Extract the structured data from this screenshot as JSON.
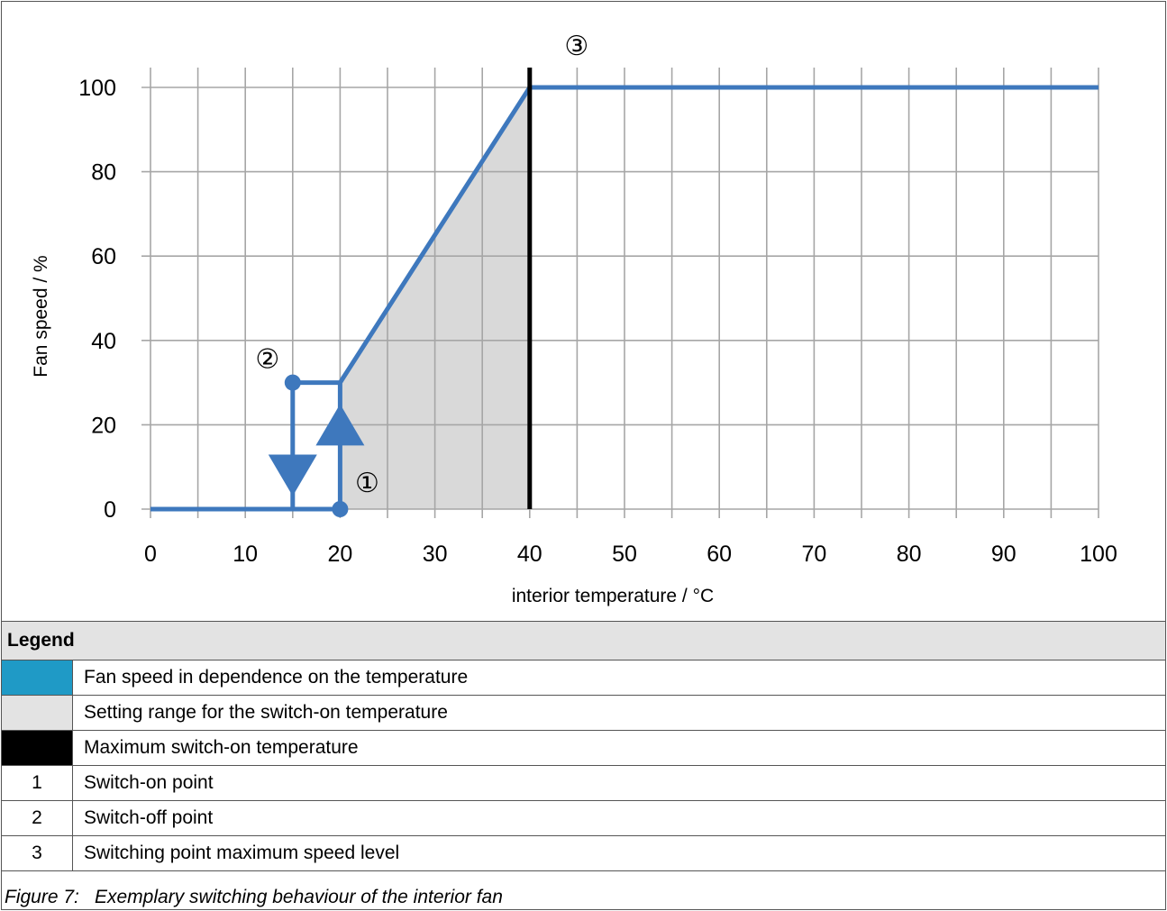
{
  "chart_data": {
    "type": "line",
    "xlabel": "interior temperature / °C",
    "ylabel": "Fan speed / %",
    "xlim": [
      0,
      100
    ],
    "ylim": [
      0,
      100
    ],
    "x_ticks": [
      0,
      10,
      20,
      30,
      40,
      50,
      60,
      70,
      80,
      90,
      100
    ],
    "y_ticks": [
      0,
      20,
      40,
      60,
      80,
      100
    ],
    "x_minor_grid_step": 5,
    "grid": true,
    "series": [
      {
        "name": "Fan speed in dependence on the temperature",
        "color": "#3e78bd",
        "points": [
          [
            0,
            0
          ],
          [
            20,
            0
          ],
          [
            20,
            30
          ],
          [
            40,
            100
          ],
          [
            100,
            100
          ]
        ]
      },
      {
        "name": "Switch-off path",
        "color": "#3e78bd",
        "points": [
          [
            20,
            30
          ],
          [
            15,
            30
          ],
          [
            15,
            0
          ]
        ]
      }
    ],
    "shaded_region": {
      "name": "Setting range for the switch-on temperature",
      "color": "#d9d9d9",
      "x_from": 20,
      "x_to": 40
    },
    "vertical_line": {
      "name": "Maximum switch-on temperature",
      "x": 40,
      "color": "#000000"
    },
    "arrows": [
      {
        "direction": "up",
        "x": 20,
        "y": 20
      },
      {
        "direction": "down",
        "x": 15,
        "y": 8
      }
    ],
    "markers": [
      {
        "label": "1",
        "x": 20,
        "y": 0
      },
      {
        "label": "2",
        "x": 15,
        "y": 30
      },
      {
        "label": "3",
        "x": 40,
        "y": 100
      }
    ],
    "marker_labels": {
      "1": "①",
      "2": "②",
      "3": "③"
    }
  },
  "legend": {
    "title": "Legend",
    "rows": [
      {
        "key": "",
        "key_color": "#1f9ac6",
        "text": "Fan speed in dependence on the temperature"
      },
      {
        "key": "",
        "key_color": "#e3e3e3",
        "text": "Setting range for the switch-on temperature"
      },
      {
        "key": "",
        "key_color": "#000000",
        "text": "Maximum switch-on temperature"
      },
      {
        "key": "1",
        "key_color": "",
        "text": "Switch-on point"
      },
      {
        "key": "2",
        "key_color": "",
        "text": "Switch-off point"
      },
      {
        "key": "3",
        "key_color": "",
        "text": "Switching point maximum speed level"
      }
    ]
  },
  "caption": {
    "number": "Figure 7:",
    "text": "Exemplary switching behaviour of the interior fan"
  }
}
